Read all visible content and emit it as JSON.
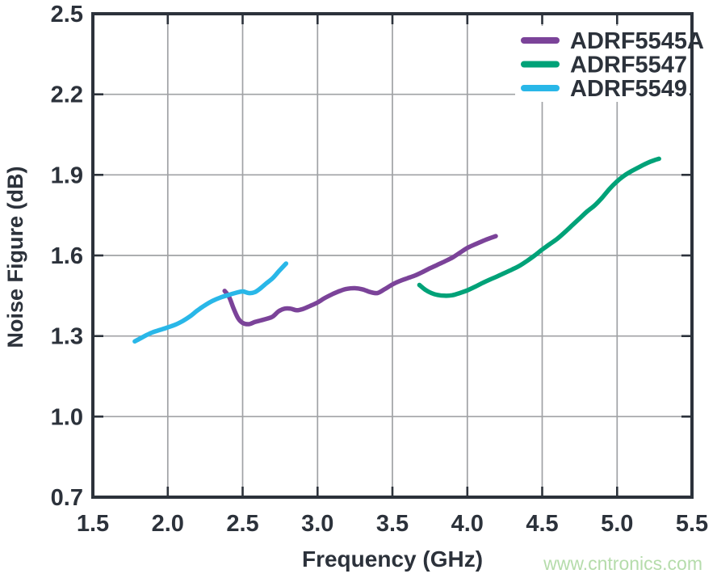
{
  "watermark": "www.cntronics.com",
  "colors": {
    "frame": "#2c323b",
    "text": "#2c323b",
    "grid": "#a0a2a5",
    "watermark": "#b5dcab",
    "background": "#ffffff"
  },
  "chart_data": {
    "type": "line",
    "xlabel": "Frequency (GHz)",
    "ylabel": "Noise Figure (dB)",
    "xlim": [
      1.5,
      5.5
    ],
    "ylim": [
      0.7,
      2.5
    ],
    "xtick_values": [
      1.5,
      2.0,
      2.5,
      3.0,
      3.5,
      4.0,
      4.5,
      5.0,
      5.5
    ],
    "xtick_labels": [
      "1.5",
      "2.0",
      "2.5",
      "3.0",
      "3.5",
      "4.0",
      "4.5",
      "5.0",
      "5.5"
    ],
    "ytick_values": [
      0.7,
      1.0,
      1.3,
      1.6,
      1.9,
      2.2,
      2.5
    ],
    "ytick_labels": [
      "0.7",
      "1.0",
      "1.3",
      "1.6",
      "1.9",
      "2.2",
      "2.5"
    ],
    "grid": true,
    "legend_position": "top-right",
    "series": [
      {
        "name": "ADRF5545A",
        "color": "#7b4399",
        "points": [
          [
            2.38,
            1.468
          ],
          [
            2.41,
            1.445
          ],
          [
            2.44,
            1.402
          ],
          [
            2.47,
            1.366
          ],
          [
            2.5,
            1.349
          ],
          [
            2.54,
            1.344
          ],
          [
            2.58,
            1.352
          ],
          [
            2.62,
            1.358
          ],
          [
            2.66,
            1.364
          ],
          [
            2.7,
            1.372
          ],
          [
            2.74,
            1.392
          ],
          [
            2.78,
            1.402
          ],
          [
            2.82,
            1.402
          ],
          [
            2.86,
            1.396
          ],
          [
            2.9,
            1.4
          ],
          [
            2.95,
            1.412
          ],
          [
            3.0,
            1.425
          ],
          [
            3.05,
            1.442
          ],
          [
            3.1,
            1.456
          ],
          [
            3.15,
            1.468
          ],
          [
            3.2,
            1.476
          ],
          [
            3.25,
            1.478
          ],
          [
            3.3,
            1.474
          ],
          [
            3.35,
            1.464
          ],
          [
            3.4,
            1.46
          ],
          [
            3.45,
            1.475
          ],
          [
            3.5,
            1.492
          ],
          [
            3.55,
            1.505
          ],
          [
            3.6,
            1.515
          ],
          [
            3.65,
            1.525
          ],
          [
            3.7,
            1.538
          ],
          [
            3.75,
            1.552
          ],
          [
            3.8,
            1.565
          ],
          [
            3.85,
            1.578
          ],
          [
            3.9,
            1.592
          ],
          [
            3.95,
            1.61
          ],
          [
            4.0,
            1.628
          ],
          [
            4.05,
            1.641
          ],
          [
            4.1,
            1.653
          ],
          [
            4.15,
            1.664
          ],
          [
            4.19,
            1.672
          ]
        ]
      },
      {
        "name": "ADRF5547",
        "color": "#00a278",
        "points": [
          [
            3.68,
            1.49
          ],
          [
            3.72,
            1.472
          ],
          [
            3.76,
            1.46
          ],
          [
            3.8,
            1.453
          ],
          [
            3.85,
            1.45
          ],
          [
            3.9,
            1.452
          ],
          [
            3.95,
            1.46
          ],
          [
            4.0,
            1.47
          ],
          [
            4.05,
            1.483
          ],
          [
            4.1,
            1.497
          ],
          [
            4.15,
            1.51
          ],
          [
            4.2,
            1.522
          ],
          [
            4.25,
            1.535
          ],
          [
            4.3,
            1.548
          ],
          [
            4.35,
            1.562
          ],
          [
            4.4,
            1.58
          ],
          [
            4.45,
            1.6
          ],
          [
            4.5,
            1.622
          ],
          [
            4.55,
            1.642
          ],
          [
            4.6,
            1.662
          ],
          [
            4.65,
            1.686
          ],
          [
            4.7,
            1.712
          ],
          [
            4.75,
            1.738
          ],
          [
            4.8,
            1.764
          ],
          [
            4.85,
            1.786
          ],
          [
            4.9,
            1.815
          ],
          [
            4.95,
            1.848
          ],
          [
            5.0,
            1.876
          ],
          [
            5.05,
            1.898
          ],
          [
            5.1,
            1.915
          ],
          [
            5.15,
            1.93
          ],
          [
            5.2,
            1.944
          ],
          [
            5.25,
            1.955
          ],
          [
            5.28,
            1.96
          ]
        ]
      },
      {
        "name": "ADRF5549",
        "color": "#29b7e8",
        "points": [
          [
            1.78,
            1.28
          ],
          [
            1.82,
            1.292
          ],
          [
            1.86,
            1.304
          ],
          [
            1.9,
            1.314
          ],
          [
            1.95,
            1.323
          ],
          [
            2.0,
            1.332
          ],
          [
            2.05,
            1.342
          ],
          [
            2.1,
            1.356
          ],
          [
            2.15,
            1.374
          ],
          [
            2.2,
            1.396
          ],
          [
            2.25,
            1.415
          ],
          [
            2.3,
            1.431
          ],
          [
            2.35,
            1.443
          ],
          [
            2.4,
            1.452
          ],
          [
            2.45,
            1.46
          ],
          [
            2.5,
            1.466
          ],
          [
            2.54,
            1.46
          ],
          [
            2.58,
            1.463
          ],
          [
            2.62,
            1.478
          ],
          [
            2.66,
            1.497
          ],
          [
            2.7,
            1.515
          ],
          [
            2.74,
            1.54
          ],
          [
            2.79,
            1.57
          ]
        ]
      }
    ]
  }
}
